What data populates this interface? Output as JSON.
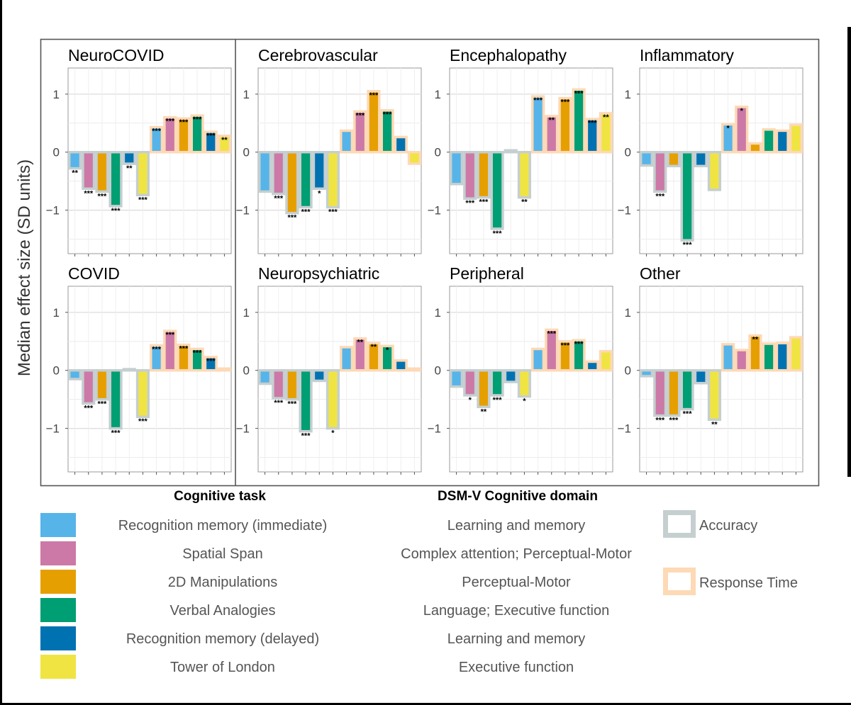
{
  "figure": {
    "ylabel": "Median effect size (SD units)",
    "yticks": [
      1,
      0,
      -1
    ],
    "ylim": [
      -1.75,
      1.45
    ],
    "legend_task_header": "Cognitive task",
    "legend_domain_header": "DSM-V Cognitive domain"
  },
  "tasks": [
    {
      "name": "Recognition memory (immediate)",
      "domain": "Learning and memory",
      "color": "#56B4E9"
    },
    {
      "name": "Spatial Span",
      "domain": "Complex attention; Perceptual-Motor",
      "color": "#CC79A7"
    },
    {
      "name": "2D Manipulations",
      "domain": "Perceptual-Motor",
      "color": "#E69F00"
    },
    {
      "name": "Verbal Analogies",
      "domain": "Language; Executive function",
      "color": "#009E73"
    },
    {
      "name": "Recognition memory (delayed)",
      "domain": "Learning and memory",
      "color": "#0072B2"
    },
    {
      "name": "Tower of London",
      "domain": "Executive function",
      "color": "#F0E442"
    }
  ],
  "outlines": [
    {
      "name": "Accuracy",
      "color": "#C5CFD0"
    },
    {
      "name": "Response Time",
      "color": "#FDD9B5"
    }
  ],
  "chart_data": {
    "type": "bar",
    "ylim": [
      -1.75,
      1.45
    ],
    "note_order": "each panel has 12 bars: 6 tasks measured by Accuracy, then the same 6 tasks measured by Response Time",
    "panels": [
      {
        "title": "NeuroCOVID",
        "values": [
          -0.28,
          -0.63,
          -0.68,
          -0.93,
          -0.2,
          -0.74,
          0.43,
          0.6,
          0.58,
          0.63,
          0.35,
          0.28
        ],
        "stars": [
          "**",
          "***",
          "***",
          "***",
          "**",
          "***",
          "***",
          "***",
          "***",
          "***",
          "***",
          "**"
        ]
      },
      {
        "title": "Cerebrovascular",
        "values": [
          -0.68,
          -0.72,
          -1.05,
          -0.95,
          -0.63,
          -0.95,
          0.37,
          0.7,
          1.05,
          0.72,
          0.26,
          -0.2
        ],
        "stars": [
          "",
          "***",
          "***",
          "***",
          "*",
          "***",
          "",
          "***",
          "***",
          "***",
          "",
          ""
        ]
      },
      {
        "title": "Encephalopathy",
        "values": [
          -0.55,
          -0.8,
          -0.78,
          -1.32,
          0.03,
          -0.78,
          0.96,
          0.62,
          0.93,
          1.08,
          0.57,
          0.67
        ],
        "stars": [
          "",
          "***",
          "***",
          "***",
          "",
          "**",
          "***",
          "**",
          "***",
          "***",
          "***",
          "**"
        ]
      },
      {
        "title": "Inflammatory",
        "values": [
          -0.23,
          -0.68,
          -0.24,
          -1.52,
          -0.24,
          -0.65,
          0.48,
          0.78,
          0.15,
          0.39,
          0.37,
          0.47
        ],
        "stars": [
          "",
          "***",
          "",
          "***",
          "",
          "",
          "*",
          "*",
          "",
          "",
          "",
          ""
        ]
      },
      {
        "title": "COVID",
        "values": [
          -0.15,
          -0.57,
          -0.5,
          -1.0,
          0.02,
          -0.8,
          0.43,
          0.68,
          0.44,
          0.37,
          0.23,
          0.03
        ],
        "stars": [
          "",
          "***",
          "***",
          "***",
          "",
          "***",
          "***",
          "***",
          "***",
          "***",
          "***",
          ""
        ]
      },
      {
        "title": "Neuropsychiatric",
        "values": [
          -0.23,
          -0.48,
          -0.5,
          -1.05,
          -0.18,
          -1.0,
          0.4,
          0.55,
          0.47,
          0.42,
          0.17,
          0.03
        ],
        "stars": [
          "",
          "***",
          "***",
          "***",
          "",
          "*",
          "",
          "**",
          "**",
          "*",
          "",
          ""
        ]
      },
      {
        "title": "Peripheral",
        "values": [
          -0.28,
          -0.43,
          -0.63,
          -0.43,
          -0.2,
          -0.45,
          0.37,
          0.7,
          0.5,
          0.52,
          0.15,
          0.33
        ],
        "stars": [
          "",
          "*",
          "**",
          "***",
          "",
          "*",
          "",
          "***",
          "***",
          "***",
          "",
          ""
        ]
      },
      {
        "title": "Other",
        "values": [
          -0.1,
          -0.78,
          -0.78,
          -0.67,
          -0.22,
          -0.85,
          0.45,
          0.35,
          0.6,
          0.46,
          0.47,
          0.57
        ],
        "stars": [
          "",
          "***",
          "***",
          "***",
          "",
          "**",
          "",
          "",
          "**",
          "",
          "",
          ""
        ]
      }
    ]
  }
}
